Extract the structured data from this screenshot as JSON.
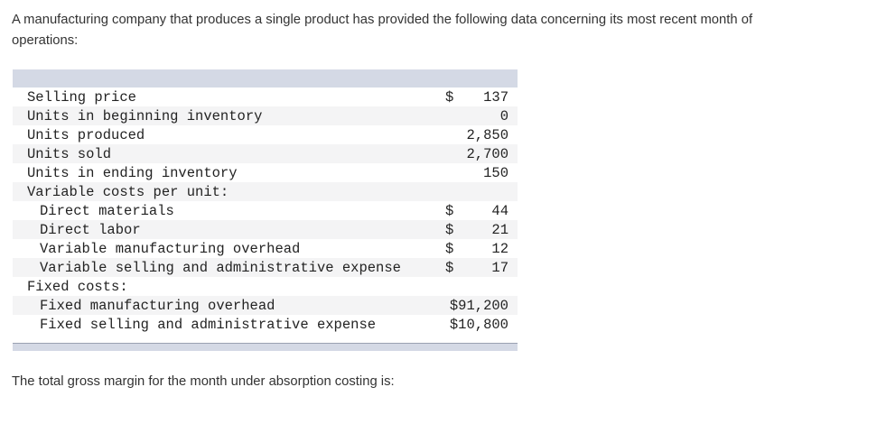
{
  "intro": {
    "lines": [
      "A manufacturing company that produces a single product has provided the following data concerning its most recent month of",
      "operations:"
    ]
  },
  "table": {
    "rows": [
      {
        "label": "Selling price",
        "dollar": "$",
        "amount": "137"
      },
      {
        "label": "Units in beginning inventory",
        "dollar": "",
        "amount": "0"
      },
      {
        "label": "Units produced",
        "dollar": "",
        "amount": "2,850"
      },
      {
        "label": "Units sold",
        "dollar": "",
        "amount": "2,700"
      },
      {
        "label": "Units in ending inventory",
        "dollar": "",
        "amount": "150"
      },
      {
        "label": "Variable costs per unit:",
        "dollar": "",
        "amount": ""
      },
      {
        "label": "Direct materials",
        "dollar": "$",
        "amount": "44"
      },
      {
        "label": "Direct labor",
        "dollar": "$",
        "amount": "21"
      },
      {
        "label": "Variable manufacturing overhead",
        "dollar": "$",
        "amount": "12"
      },
      {
        "label": "Variable selling and administrative expense",
        "dollar": "$",
        "amount": "17"
      },
      {
        "label": "Fixed costs:",
        "dollar": "",
        "amount": ""
      },
      {
        "label": "Fixed manufacturing overhead",
        "dollar": "",
        "amount": "$91,200"
      },
      {
        "label": "Fixed selling and administrative expense",
        "dollar": "",
        "amount": "$10,800"
      }
    ]
  },
  "question": "The total gross margin for the month under absorption costing is:",
  "colors": {
    "bar": "#d4d9e5",
    "bar_border": "#9aa1b1",
    "row_stripe": "#f4f4f5",
    "text": "#333333",
    "table_text": "#232323"
  }
}
